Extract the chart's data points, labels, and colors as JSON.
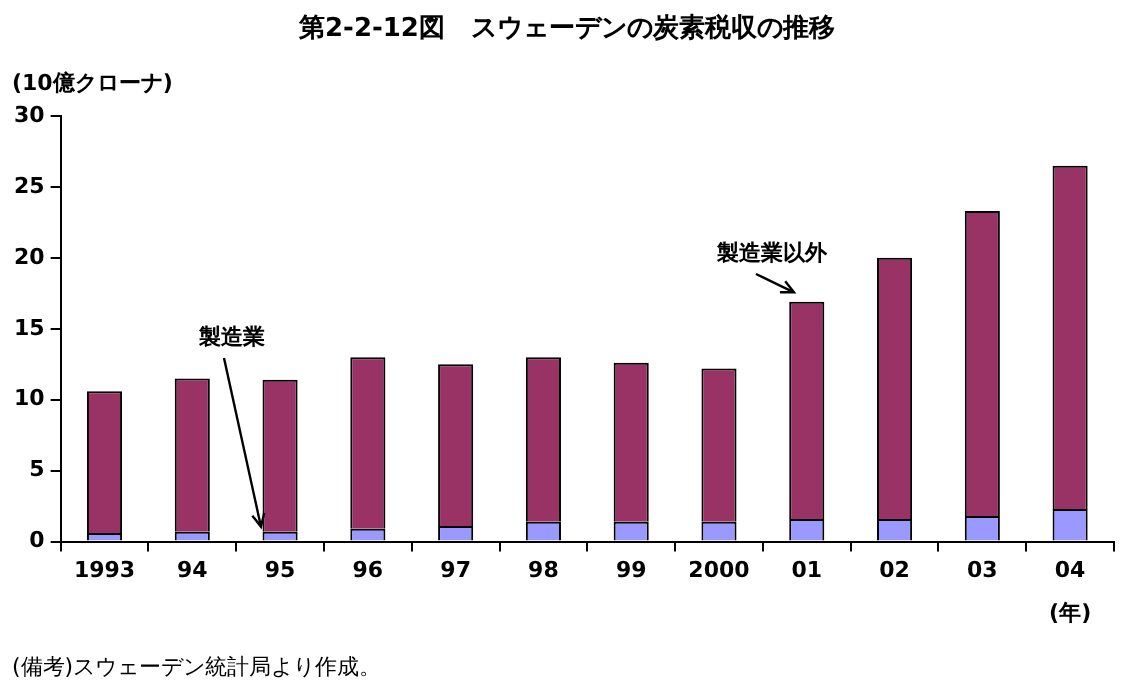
{
  "chart_data": {
    "type": "bar",
    "title": "第2-2-12図　スウェーデンの炭素税収の推移",
    "ylabel": "(10億クローナ)",
    "xlabel": "(年)",
    "categories": [
      "1993",
      "94",
      "95",
      "96",
      "97",
      "98",
      "99",
      "2000",
      "01",
      "02",
      "03",
      "04"
    ],
    "stacked": true,
    "ylim": [
      0,
      30
    ],
    "yticks": [
      0,
      5,
      10,
      15,
      20,
      25,
      30
    ],
    "grid": false,
    "legend": false,
    "series": [
      {
        "name": "製造業",
        "color": "#9999ff",
        "values": [
          0.6,
          0.7,
          0.7,
          0.9,
          1.1,
          1.4,
          1.4,
          1.4,
          1.6,
          1.6,
          1.8,
          2.3
        ]
      },
      {
        "name": "製造業以外",
        "color": "#993366",
        "values": [
          10.0,
          10.8,
          10.7,
          12.1,
          11.4,
          11.6,
          11.2,
          10.8,
          15.3,
          18.4,
          21.5,
          24.2
        ]
      }
    ],
    "annotations": [
      "(備考)スウェーデン統計局より作成。"
    ]
  }
}
